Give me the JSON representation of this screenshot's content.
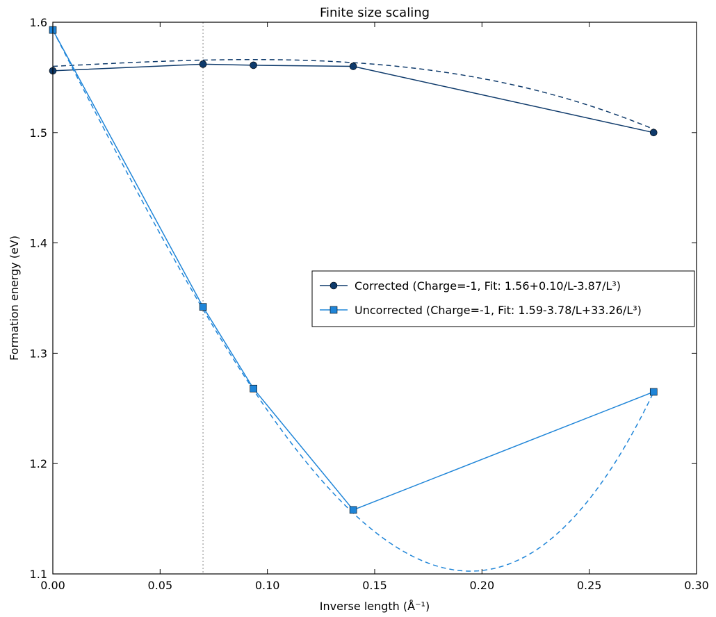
{
  "chart_data": {
    "type": "line",
    "title": "Finite size scaling",
    "xlabel": "Inverse length (Å⁻¹)",
    "ylabel": "Formation energy (eV)",
    "xlim": [
      0.0,
      0.3
    ],
    "ylim": [
      1.1,
      1.6
    ],
    "xticks": [
      "0.00",
      "0.05",
      "0.10",
      "0.15",
      "0.20",
      "0.25",
      "0.30"
    ],
    "yticks": [
      "1.1",
      "1.2",
      "1.3",
      "1.4",
      "1.5",
      "1.6"
    ],
    "grid": false,
    "legend_position": "center-right",
    "vline_x": 0.07,
    "series": [
      {
        "name": "Corrected (Charge=-1, Fit: 1.56+0.10/L-3.87/L³)",
        "color": "#0e3a6b",
        "marker": "circle",
        "x": [
          0.0,
          0.07,
          0.0935,
          0.14,
          0.28
        ],
        "y": [
          1.556,
          1.562,
          1.561,
          1.56,
          1.5
        ],
        "fit": [
          1.56,
          0.1,
          -3.87
        ]
      },
      {
        "name": "Uncorrected (Charge=-1, Fit: 1.59-3.78/L+33.26/L³)",
        "color": "#1f85d8",
        "marker": "square",
        "x": [
          0.0,
          0.07,
          0.0935,
          0.14,
          0.28
        ],
        "y": [
          1.593,
          1.342,
          1.268,
          1.158,
          1.265
        ],
        "fit": [
          1.593,
          -3.78,
          33.26
        ]
      }
    ]
  }
}
